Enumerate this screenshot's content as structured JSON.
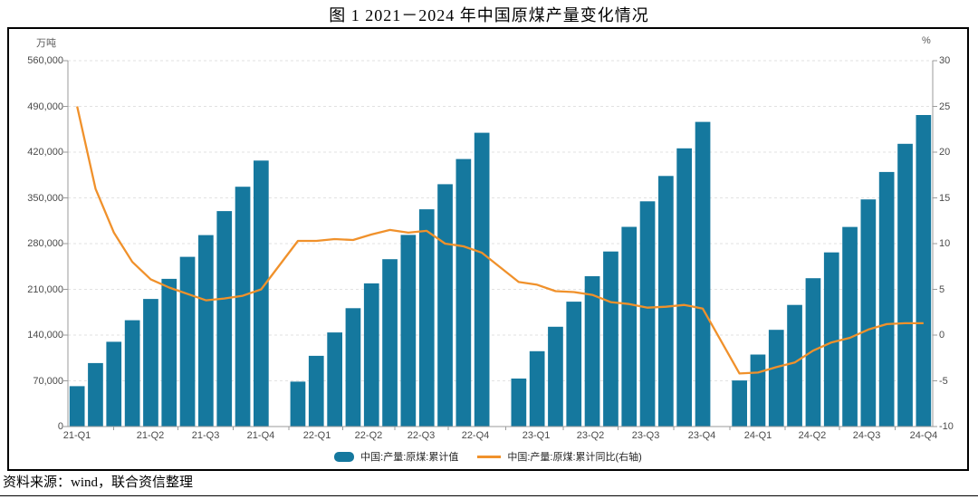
{
  "page": {
    "title": "图 1  2021－2024 年中国原煤产量变化情况",
    "source": "资料来源：wind，联合资信整理"
  },
  "chart_data": {
    "type": "bar",
    "title": "图 1  2021－2024 年中国原煤产量变化情况",
    "left_axis": {
      "unit": "万吨",
      "min": 0,
      "max": 560000,
      "tick_step": 70000,
      "tick_labels": [
        "0",
        "70,000",
        "140,000",
        "210,000",
        "280,000",
        "350,000",
        "420,000",
        "490,000",
        "560,000"
      ]
    },
    "right_axis": {
      "unit": "%",
      "min": -10,
      "max": 30,
      "tick_step": 5,
      "tick_labels": [
        "-10",
        "-5",
        "0",
        "5",
        "10",
        "15",
        "20",
        "25",
        "30"
      ]
    },
    "x_tick_labels": [
      "21-Q1",
      "21-Q2",
      "21-Q3",
      "21-Q4",
      "22-Q1",
      "22-Q2",
      "22-Q3",
      "22-Q4",
      "23-Q1",
      "23-Q2",
      "23-Q3",
      "23-Q4",
      "24-Q1",
      "24-Q2",
      "24-Q3",
      "24-Q4"
    ],
    "grid": "horizontal-dashed",
    "legend_position": "bottom-center",
    "legend": [
      {
        "label": "中国:产量:原煤:累计值",
        "type": "bar",
        "color": "#15789e"
      },
      {
        "label": "中国:产量:原煤:累计同比(右轴)",
        "type": "line",
        "color": "#f0912b"
      }
    ],
    "note": "monthly cumulative values Feb-Dec per year; January slot empty",
    "series": [
      {
        "name": "中国:产量:原煤:累计值",
        "type": "bar",
        "axis": "left",
        "color": "#15789e",
        "values_by_year": [
          [
            61800,
            97100,
            129700,
            162700,
            195300,
            226100,
            259700,
            293000,
            329700,
            367100,
            407100
          ],
          [
            68700,
            108300,
            144000,
            181100,
            219200,
            256200,
            293300,
            332500,
            370900,
            409400,
            449600
          ],
          [
            73400,
            115300,
            152700,
            191200,
            230100,
            267900,
            305700,
            344800,
            383600,
            425800,
            466300
          ],
          [
            70500,
            110200,
            148100,
            186200,
            227000,
            266600,
            305500,
            347600,
            389700,
            432800,
            476800
          ]
        ]
      },
      {
        "name": "中国:产量:原煤:累计同比(右轴)",
        "type": "line",
        "axis": "right",
        "color": "#f0912b",
        "values_by_year": [
          [
            25.0,
            16.0,
            11.2,
            8.0,
            6.1,
            5.2,
            4.5,
            3.8,
            4.0,
            4.3,
            5.0
          ],
          [
            10.3,
            10.3,
            10.5,
            10.4,
            11.0,
            11.5,
            11.2,
            11.4,
            10.0,
            9.7,
            9.0
          ],
          [
            5.8,
            5.5,
            4.8,
            4.7,
            4.4,
            3.6,
            3.4,
            3.0,
            3.1,
            3.3,
            2.9
          ],
          [
            -4.2,
            -4.1,
            -3.5,
            -3.0,
            -1.7,
            -0.8,
            -0.3,
            0.6,
            1.2,
            1.3,
            1.3
          ]
        ]
      }
    ],
    "colors": {
      "bar": "#15789e",
      "line": "#f0912b",
      "grid": "#e2e2e2",
      "axis": "#9b9b9b",
      "tick_text": "#4a4a4a"
    }
  }
}
